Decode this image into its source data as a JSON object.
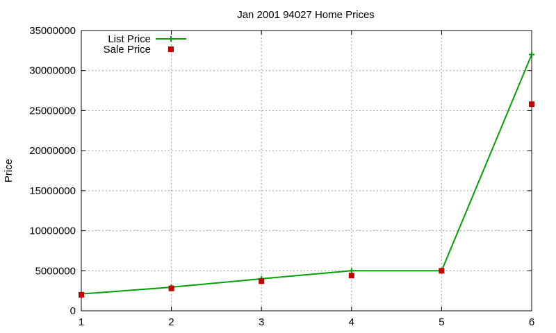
{
  "chart_data": {
    "type": "line",
    "title": "Jan 2001 94027 Home Prices",
    "xlabel": "",
    "ylabel": "Price",
    "x": [
      1,
      2,
      3,
      4,
      5,
      6
    ],
    "xlim": [
      1,
      6
    ],
    "ylim": [
      0,
      35000000
    ],
    "xticks": [
      1,
      2,
      3,
      4,
      5,
      6
    ],
    "yticks": [
      0,
      5000000,
      10000000,
      15000000,
      20000000,
      25000000,
      30000000,
      35000000
    ],
    "grid": true,
    "legend_position": "top-left",
    "series": [
      {
        "name": "List Price",
        "style": "line-with-plus-markers",
        "color": "#00a000",
        "values": [
          2100000,
          2950000,
          4000000,
          5000000,
          5000000,
          32000000
        ]
      },
      {
        "name": "Sale Price",
        "style": "square-markers",
        "color": "#c00000",
        "values": [
          2000000,
          2800000,
          3700000,
          4400000,
          5000000,
          25800000
        ]
      }
    ]
  }
}
